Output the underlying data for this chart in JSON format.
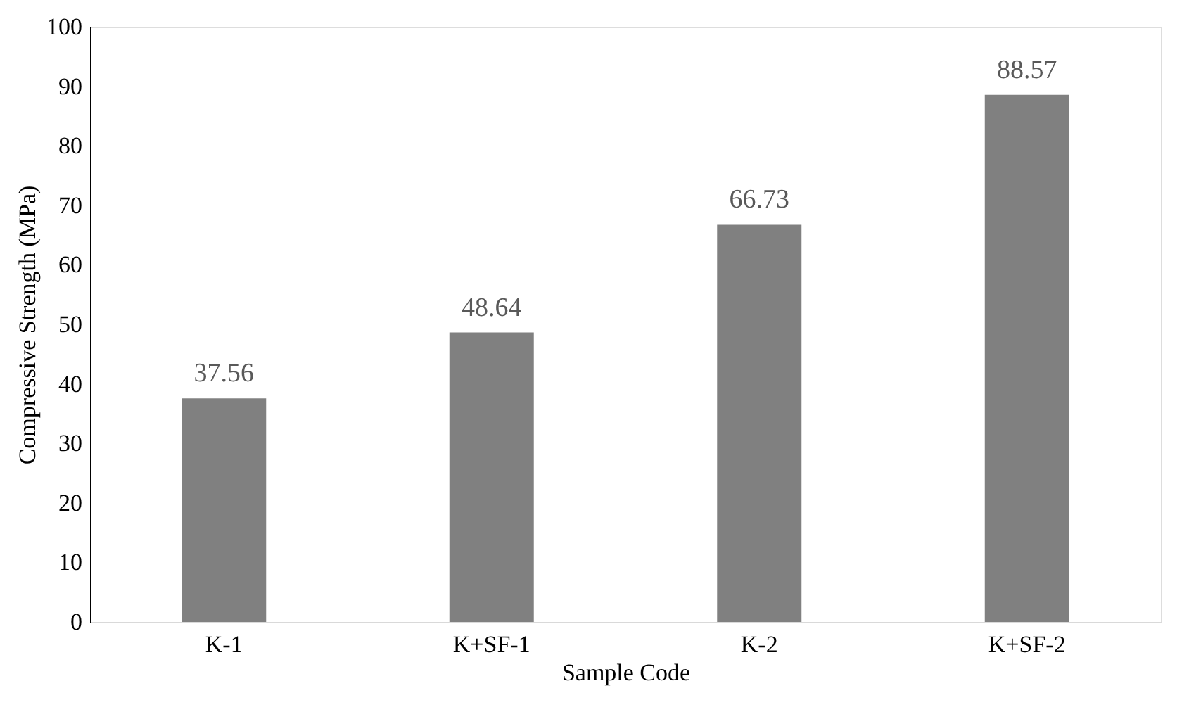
{
  "chart_data": {
    "type": "bar",
    "categories": [
      "K-1",
      "K+SF-1",
      "K-2",
      "K+SF-2"
    ],
    "values": [
      37.56,
      48.64,
      66.73,
      88.57
    ],
    "color": "#808080",
    "xlabel": "Sample Code",
    "ylabel": "Compressive Strength (MPa)",
    "ylim": [
      0,
      100
    ],
    "yticks": [
      0,
      10,
      20,
      30,
      40,
      50,
      60,
      70,
      80,
      90,
      100
    ],
    "data_labels": true,
    "grid": false
  }
}
